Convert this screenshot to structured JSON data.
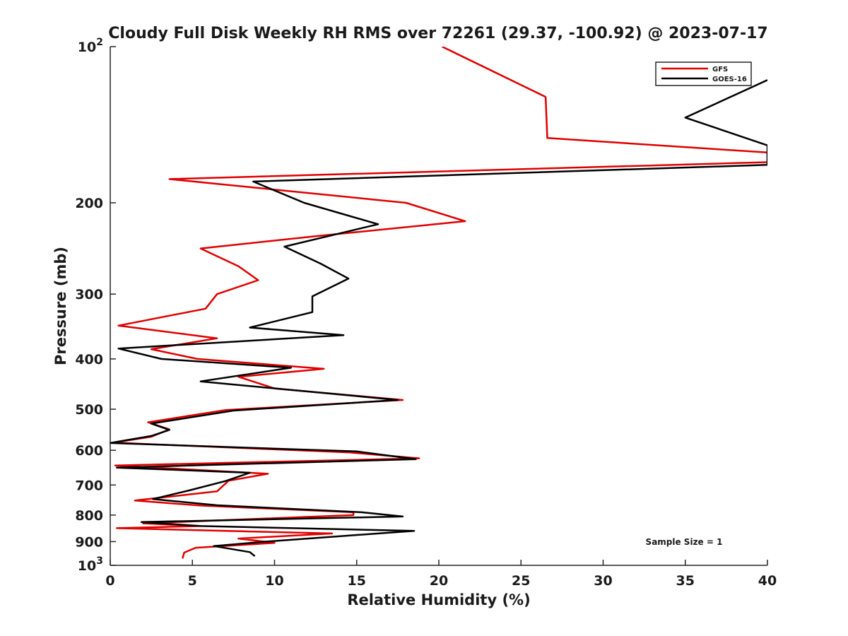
{
  "chart_data": {
    "type": "line",
    "title": "Cloudy Full Disk Weekly RH RMS over 72261 (29.37, -100.92) @ 2023-07-17",
    "xlabel": "Relative Humidity (%)",
    "ylabel": "Pressure (mb)",
    "xlim": [
      0,
      40
    ],
    "ylim": [
      100,
      1000
    ],
    "yscale": "log",
    "y_reversed": true,
    "grid": false,
    "x_ticks": [
      0,
      5,
      10,
      15,
      20,
      25,
      30,
      35,
      40
    ],
    "x_tick_labels": [
      "0",
      "5",
      "10",
      "15",
      "20",
      "25",
      "30",
      "35",
      "40"
    ],
    "y_ticks": [
      100,
      200,
      300,
      400,
      500,
      600,
      700,
      800,
      900,
      1000
    ],
    "y_tick_labels": [
      "10^2",
      "200",
      "300",
      "400",
      "500",
      "600",
      "700",
      "800",
      "900",
      "10^3"
    ],
    "legend_position": "top-right",
    "series": [
      {
        "name": "GFS",
        "color": "#e00000",
        "points": [
          [
            20.2,
            100
          ],
          [
            26.5,
            125
          ],
          [
            26.6,
            150
          ],
          [
            40.0,
            160
          ],
          [
            40.0,
            167
          ],
          [
            3.6,
            180
          ],
          [
            18.0,
            200
          ],
          [
            21.6,
            217
          ],
          [
            12.5,
            232
          ],
          [
            5.5,
            245
          ],
          [
            7.8,
            265
          ],
          [
            9.0,
            282
          ],
          [
            6.5,
            300
          ],
          [
            5.8,
            320
          ],
          [
            0.5,
            345
          ],
          [
            6.5,
            365
          ],
          [
            2.5,
            383
          ],
          [
            5.3,
            400
          ],
          [
            13.0,
            418
          ],
          [
            7.8,
            433
          ],
          [
            10.0,
            456
          ],
          [
            17.8,
            480
          ],
          [
            7.0,
            502
          ],
          [
            2.3,
            530
          ],
          [
            3.6,
            547
          ],
          [
            2.5,
            565
          ],
          [
            0.2,
            580
          ],
          [
            14.6,
            606
          ],
          [
            18.8,
            622
          ],
          [
            0.3,
            642
          ],
          [
            9.6,
            666
          ],
          [
            7.2,
            687
          ],
          [
            6.5,
            720
          ],
          [
            1.5,
            750
          ],
          [
            5.5,
            767
          ],
          [
            14.8,
            790
          ],
          [
            14.8,
            800
          ],
          [
            2.0,
            830
          ],
          [
            5.5,
            840
          ],
          [
            0.4,
            848
          ],
          [
            13.5,
            868
          ],
          [
            7.8,
            888
          ],
          [
            10.0,
            905
          ],
          [
            5.2,
            925
          ],
          [
            4.5,
            945
          ],
          [
            4.4,
            970
          ]
        ]
      },
      {
        "name": "GOES-16",
        "color": "#000000",
        "points": [
          [
            40.0,
            116
          ],
          [
            35.0,
            137
          ],
          [
            40.0,
            155
          ],
          [
            40.0,
            169
          ],
          [
            8.7,
            182
          ],
          [
            11.8,
            200
          ],
          [
            16.3,
            220
          ],
          [
            10.6,
            243
          ],
          [
            12.8,
            262
          ],
          [
            14.5,
            280
          ],
          [
            12.3,
            303
          ],
          [
            12.3,
            325
          ],
          [
            8.5,
            348
          ],
          [
            14.2,
            360
          ],
          [
            0.5,
            382
          ],
          [
            3.1,
            400
          ],
          [
            11.0,
            416
          ],
          [
            5.5,
            442
          ],
          [
            17.5,
            480
          ],
          [
            7.5,
            503
          ],
          [
            2.5,
            533
          ],
          [
            3.6,
            548
          ],
          [
            2.5,
            563
          ],
          [
            0.0,
            581
          ],
          [
            15.0,
            603
          ],
          [
            18.6,
            624
          ],
          [
            0.4,
            648
          ],
          [
            8.5,
            663
          ],
          [
            7.0,
            688
          ],
          [
            4.8,
            717
          ],
          [
            2.6,
            745
          ],
          [
            6.5,
            766
          ],
          [
            15.3,
            790
          ],
          [
            17.8,
            805
          ],
          [
            1.9,
            825
          ],
          [
            5.5,
            840
          ],
          [
            18.5,
            858
          ],
          [
            9.5,
            900
          ],
          [
            6.3,
            918
          ],
          [
            8.5,
            943
          ],
          [
            8.8,
            960
          ]
        ]
      }
    ],
    "legend": [
      "GFS",
      "GOES-16"
    ],
    "annotations": [
      "Sample Size = 1"
    ]
  }
}
